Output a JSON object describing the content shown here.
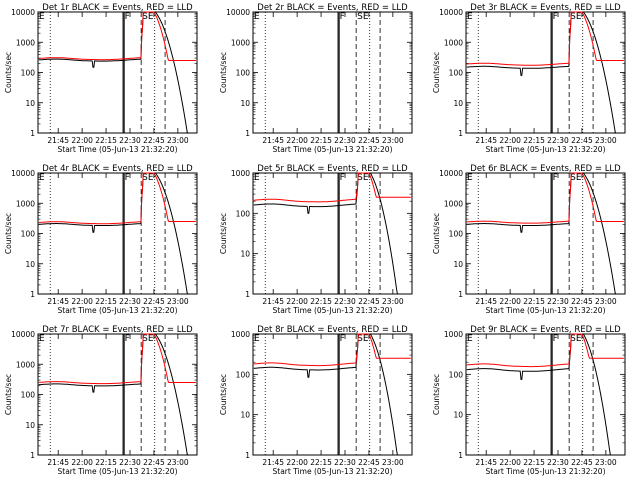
{
  "common": {
    "xlabel": "Start Time (05-Jun-13 21:32:20)",
    "ylabel": "Counts/sec",
    "xticks": [
      "21:45",
      "22:00",
      "22:15",
      "22:30",
      "22:45",
      "23:00"
    ],
    "yticks": [
      "1",
      "10",
      "100",
      "1000",
      "10000"
    ],
    "markers": [
      "E",
      "F",
      "SE"
    ],
    "colors": {
      "events": "#000000",
      "lld": "#ff0000"
    }
  },
  "chart_data": [
    {
      "type": "line",
      "title": "Det 1r BLACK = Events, RED = LLD",
      "yscale": "log",
      "ylim": [
        1,
        10000
      ],
      "xlim": [
        "21:32:20",
        "23:12"
      ],
      "grid": false,
      "legend": "none",
      "series": [
        {
          "name": "Events",
          "baseline": 260,
          "dip": 150
        },
        {
          "name": "LLD",
          "baseline": 290,
          "peak": 14000
        }
      ]
    },
    {
      "type": "line",
      "title": "Det 2r BLACK = Events, RED = LLD",
      "yscale": "log",
      "ylim": [
        1,
        10000
      ],
      "xlim": [
        "21:32:20",
        "23:12"
      ],
      "grid": false,
      "legend": "none",
      "series": [
        {
          "name": "Events",
          "baseline": 0
        },
        {
          "name": "LLD",
          "baseline": 0
        }
      ]
    },
    {
      "type": "line",
      "title": "Det 3r BLACK = Events, RED = LLD",
      "yscale": "log",
      "ylim": [
        1,
        10000
      ],
      "xlim": [
        "21:32:20",
        "23:12"
      ],
      "grid": false,
      "legend": "none",
      "series": [
        {
          "name": "Events",
          "baseline": 150,
          "dip": 80
        },
        {
          "name": "LLD",
          "baseline": 190,
          "peak": 14000
        }
      ]
    },
    {
      "type": "line",
      "title": "Det 4r BLACK = Events, RED = LLD",
      "yscale": "log",
      "ylim": [
        1,
        10000
      ],
      "xlim": [
        "21:32:20",
        "23:12"
      ],
      "grid": false,
      "legend": "none",
      "series": [
        {
          "name": "Events",
          "baseline": 200,
          "dip": 110
        },
        {
          "name": "LLD",
          "baseline": 230,
          "peak": 14000
        }
      ]
    },
    {
      "type": "line",
      "title": "Det 5r BLACK = Events, RED = LLD",
      "yscale": "log",
      "ylim": [
        1,
        1000
      ],
      "xlim": [
        "21:32:20",
        "23:12"
      ],
      "grid": false,
      "legend": "none",
      "series": [
        {
          "name": "Events",
          "baseline": 160,
          "dip": 100
        },
        {
          "name": "LLD",
          "baseline": 210,
          "peak": 1400
        }
      ]
    },
    {
      "type": "line",
      "title": "Det 6r BLACK = Events, RED = LLD",
      "yscale": "log",
      "ylim": [
        1,
        10000
      ],
      "xlim": [
        "21:32:20",
        "23:12"
      ],
      "grid": false,
      "legend": "none",
      "series": [
        {
          "name": "Events",
          "baseline": 200,
          "dip": 110
        },
        {
          "name": "LLD",
          "baseline": 240,
          "peak": 14000
        }
      ]
    },
    {
      "type": "line",
      "title": "Det 7r BLACK = Events, RED = LLD",
      "yscale": "log",
      "ylim": [
        1,
        10000
      ],
      "xlim": [
        "21:32:20",
        "23:12"
      ],
      "grid": false,
      "legend": "none",
      "series": [
        {
          "name": "Events",
          "baseline": 210,
          "dip": 120
        },
        {
          "name": "LLD",
          "baseline": 250,
          "peak": 14000
        }
      ]
    },
    {
      "type": "line",
      "title": "Det 8r BLACK = Events, RED = LLD",
      "yscale": "log",
      "ylim": [
        1,
        1000
      ],
      "xlim": [
        "21:32:20",
        "23:12"
      ],
      "grid": false,
      "legend": "none",
      "series": [
        {
          "name": "Events",
          "baseline": 140,
          "dip": 85
        },
        {
          "name": "LLD",
          "baseline": 180,
          "peak": 1400
        }
      ]
    },
    {
      "type": "line",
      "title": "Det 9r BLACK = Events, RED = LLD",
      "yscale": "log",
      "ylim": [
        1,
        1000
      ],
      "xlim": [
        "21:32:20",
        "23:12"
      ],
      "grid": false,
      "legend": "none",
      "series": [
        {
          "name": "Events",
          "baseline": 130,
          "dip": 75
        },
        {
          "name": "LLD",
          "baseline": 170,
          "peak": 1400
        }
      ]
    }
  ]
}
